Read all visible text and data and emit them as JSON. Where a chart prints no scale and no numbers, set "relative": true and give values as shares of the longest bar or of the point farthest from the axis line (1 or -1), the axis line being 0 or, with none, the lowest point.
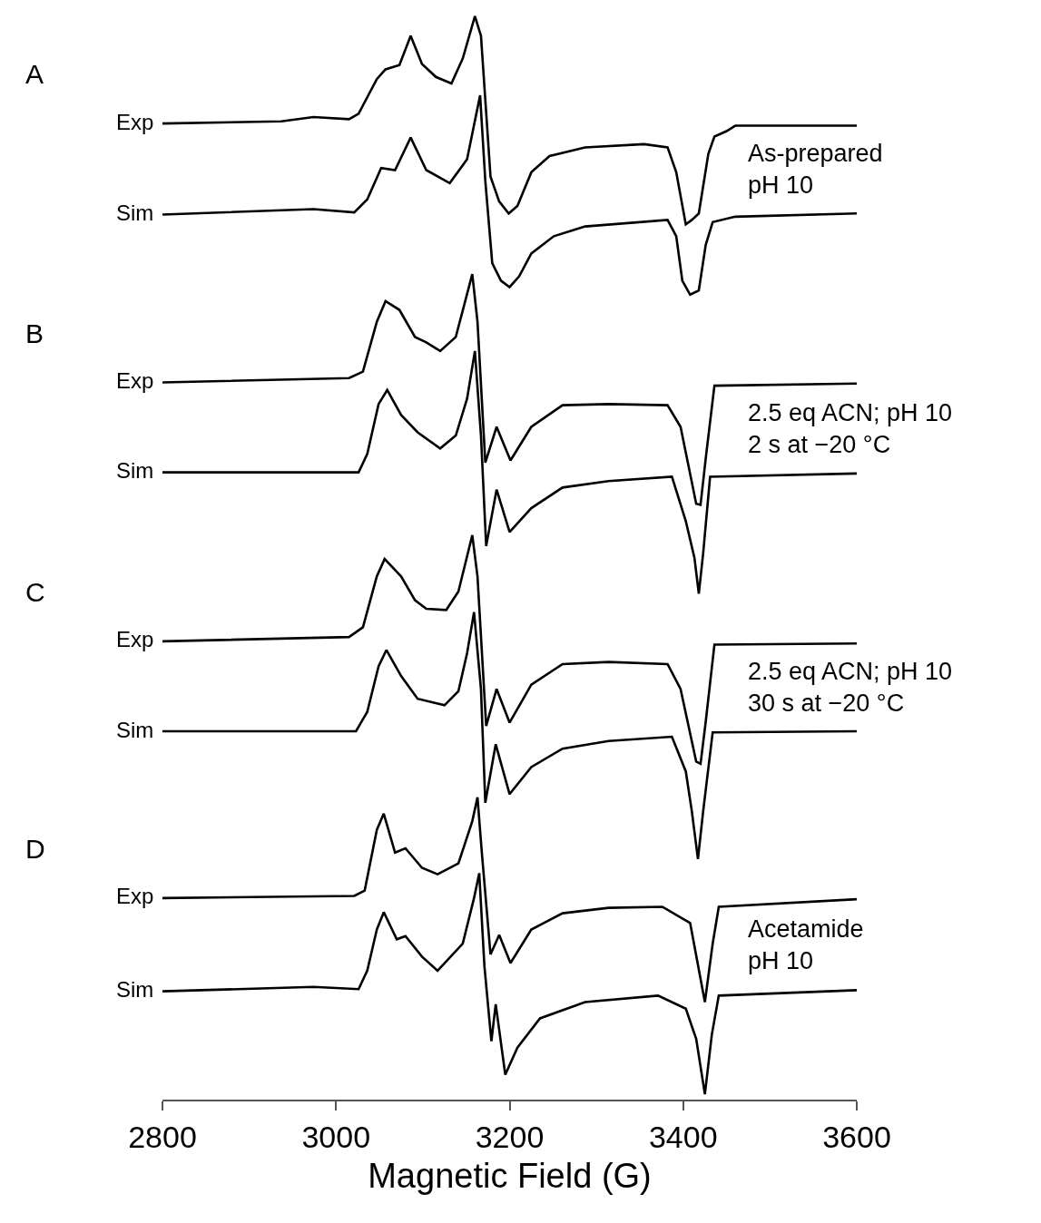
{
  "chart_data": {
    "type": "line",
    "relative": true,
    "xlabel": "Magnetic Field (G)",
    "xlim": [
      2800,
      3600
    ],
    "xticks": [
      2800,
      3000,
      3200,
      3400,
      3600
    ],
    "legend": false,
    "marker": "none",
    "line_style": "solid",
    "tick_labels": "x",
    "annotations": [
      "A",
      "As-prepared\npH 10",
      "B",
      "2.5 eq ACN; pH 10\n2 s at −20 °C",
      "C",
      "2.5 eq ACN; pH 10\n30 s at −20 °C",
      "D",
      "Acetamide\npH 10"
    ],
    "series": [
      {
        "name": "Exp",
        "color": "#000000",
        "x": [
          2800,
          2937,
          2974,
          3015,
          3026,
          3047,
          3057,
          3073,
          3086,
          3099,
          3115,
          3133,
          3146,
          3160,
          3167,
          3178,
          3188,
          3199,
          3209,
          3225,
          3246,
          3287,
          3355,
          3382,
          3392,
          3403,
          3410,
          3418,
          3429,
          3436,
          3450,
          3460,
          3600
        ],
        "values": [
          0.901,
          0.903,
          0.907,
          0.905,
          0.91,
          0.942,
          0.951,
          0.955,
          0.982,
          0.956,
          0.944,
          0.938,
          0.961,
          1.0,
          0.982,
          0.852,
          0.829,
          0.818,
          0.825,
          0.856,
          0.871,
          0.879,
          0.882,
          0.879,
          0.856,
          0.808,
          0.812,
          0.818,
          0.873,
          0.889,
          0.894,
          0.899,
          0.899
        ]
      },
      {
        "name": "Sim",
        "color": "#000000",
        "x": [
          2800,
          2974,
          3021,
          3036,
          3052,
          3068,
          3086,
          3104,
          3131,
          3151,
          3166,
          3172,
          3180,
          3190,
          3200,
          3211,
          3225,
          3251,
          3287,
          3382,
          3392,
          3399,
          3408,
          3418,
          3426,
          3434,
          3460,
          3600
        ],
        "values": [
          0.817,
          0.822,
          0.819,
          0.831,
          0.86,
          0.858,
          0.888,
          0.858,
          0.846,
          0.868,
          0.927,
          0.848,
          0.772,
          0.756,
          0.75,
          0.76,
          0.781,
          0.797,
          0.806,
          0.812,
          0.797,
          0.756,
          0.743,
          0.747,
          0.789,
          0.81,
          0.815,
          0.818
        ]
      },
      {
        "name": "Exp",
        "color": "#000000",
        "x": [
          2800,
          3015,
          3031,
          3047,
          3057,
          3073,
          3091,
          3104,
          3120,
          3138,
          3157,
          3163,
          3172,
          3185,
          3201,
          3225,
          3261,
          3314,
          3382,
          3397,
          3415,
          3420,
          3426,
          3436,
          3600
        ],
        "values": [
          0.662,
          0.666,
          0.672,
          0.718,
          0.737,
          0.729,
          0.704,
          0.699,
          0.691,
          0.704,
          0.762,
          0.718,
          0.588,
          0.621,
          0.59,
          0.621,
          0.641,
          0.642,
          0.641,
          0.621,
          0.55,
          0.549,
          0.592,
          0.659,
          0.661
        ]
      },
      {
        "name": "Sim",
        "color": "#000000",
        "x": [
          2800,
          3026,
          3036,
          3049,
          3059,
          3075,
          3094,
          3120,
          3138,
          3151,
          3160,
          3167,
          3173,
          3185,
          3200,
          3225,
          3261,
          3314,
          3387,
          3403,
          3413,
          3418,
          3423,
          3431,
          3600
        ],
        "values": [
          0.579,
          0.579,
          0.596,
          0.642,
          0.655,
          0.632,
          0.616,
          0.601,
          0.613,
          0.647,
          0.691,
          0.613,
          0.511,
          0.563,
          0.524,
          0.546,
          0.565,
          0.571,
          0.575,
          0.534,
          0.5,
          0.467,
          0.504,
          0.575,
          0.578
        ]
      },
      {
        "name": "Exp",
        "color": "#000000",
        "x": [
          2800,
          3015,
          3031,
          3047,
          3056,
          3075,
          3091,
          3104,
          3127,
          3141,
          3157,
          3163,
          3173,
          3185,
          3200,
          3225,
          3261,
          3314,
          3382,
          3397,
          3415,
          3420,
          3426,
          3436,
          3600
        ],
        "values": [
          0.423,
          0.427,
          0.436,
          0.483,
          0.499,
          0.483,
          0.461,
          0.453,
          0.452,
          0.469,
          0.521,
          0.483,
          0.345,
          0.379,
          0.348,
          0.383,
          0.402,
          0.404,
          0.402,
          0.379,
          0.312,
          0.31,
          0.349,
          0.42,
          0.421
        ]
      },
      {
        "name": "Sim",
        "color": "#000000",
        "x": [
          2800,
          3023,
          3036,
          3049,
          3058,
          3075,
          3094,
          3125,
          3141,
          3151,
          3159,
          3167,
          3172,
          3184,
          3200,
          3225,
          3261,
          3314,
          3387,
          3403,
          3410,
          3417,
          3423,
          3434,
          3600
        ],
        "values": [
          0.34,
          0.34,
          0.358,
          0.4,
          0.415,
          0.391,
          0.37,
          0.364,
          0.377,
          0.412,
          0.45,
          0.379,
          0.274,
          0.328,
          0.282,
          0.307,
          0.324,
          0.331,
          0.335,
          0.303,
          0.266,
          0.222,
          0.266,
          0.339,
          0.34
        ]
      },
      {
        "name": "Exp",
        "color": "#000000",
        "x": [
          2800,
          3021,
          3033,
          3047,
          3055,
          3068,
          3080,
          3099,
          3117,
          3141,
          3157,
          3163,
          3168,
          3178,
          3188,
          3201,
          3225,
          3261,
          3314,
          3376,
          3408,
          3425,
          3434,
          3441,
          3600
        ],
        "values": [
          0.186,
          0.188,
          0.193,
          0.249,
          0.264,
          0.228,
          0.232,
          0.214,
          0.208,
          0.218,
          0.257,
          0.279,
          0.228,
          0.134,
          0.152,
          0.126,
          0.157,
          0.172,
          0.177,
          0.178,
          0.163,
          0.09,
          0.144,
          0.178,
          0.185
        ]
      },
      {
        "name": "Sim",
        "color": "#000000",
        "x": [
          2800,
          2974,
          3026,
          3036,
          3047,
          3055,
          3070,
          3080,
          3099,
          3117,
          3146,
          3159,
          3165,
          3171,
          3179,
          3184,
          3195,
          3209,
          3235,
          3287,
          3371,
          3403,
          3415,
          3425,
          3433,
          3441,
          3600
        ],
        "values": [
          0.1,
          0.104,
          0.102,
          0.119,
          0.157,
          0.173,
          0.148,
          0.151,
          0.132,
          0.119,
          0.144,
          0.186,
          0.209,
          0.123,
          0.054,
          0.088,
          0.023,
          0.048,
          0.075,
          0.09,
          0.096,
          0.084,
          0.056,
          0.005,
          0.06,
          0.096,
          0.101
        ]
      }
    ]
  }
}
